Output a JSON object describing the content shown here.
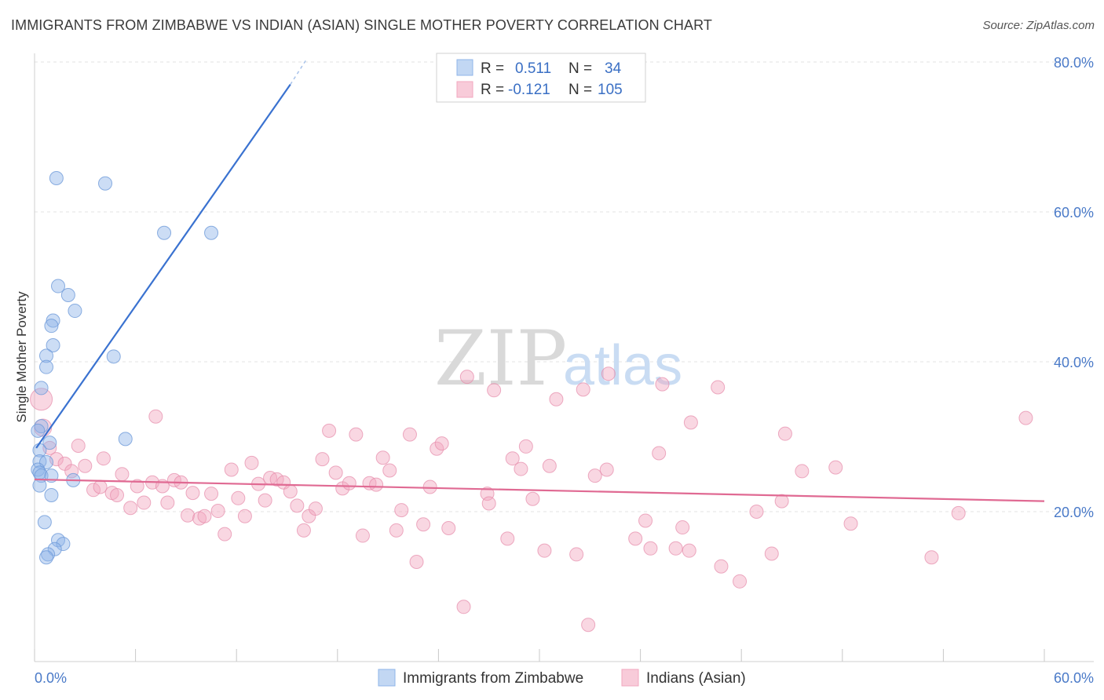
{
  "title": "IMMIGRANTS FROM ZIMBABWE VS INDIAN (ASIAN) SINGLE MOTHER POVERTY CORRELATION CHART",
  "source": "Source: ZipAtlas.com",
  "watermark": {
    "part1": "ZIP",
    "part2": "atlas"
  },
  "colors": {
    "blue": "#8fb4e8",
    "blue_line": "#3a72d0",
    "pink": "#f2a7bf",
    "pink_line": "#e06a93",
    "grid": "#e3e3e3"
  },
  "legend": {
    "row1": {
      "r_label": "R =",
      "r_value": "0.511",
      "n_label": "N =",
      "n_value": "34"
    },
    "row2": {
      "r_label": "R =",
      "r_value": "-0.121",
      "n_label": "N =",
      "n_value": "105"
    }
  },
  "chart_data": {
    "type": "scatter",
    "title": "IMMIGRANTS FROM ZIMBABWE VS INDIAN (ASIAN) SINGLE MOTHER POVERTY CORRELATION CHART",
    "xlabel": "",
    "ylabel": "Single Mother Poverty",
    "xlim": [
      0,
      60
    ],
    "ylim": [
      0,
      83
    ],
    "x_tick_labels": [
      "0.0%",
      "60.0%"
    ],
    "y_tick_labels": [
      {
        "value": 20,
        "label": "20.0%"
      },
      {
        "value": 40,
        "label": "40.0%"
      },
      {
        "value": 60,
        "label": "60.0%"
      },
      {
        "value": 80,
        "label": "80.0%"
      }
    ],
    "series": [
      {
        "name": "Immigrants from Zimbabwe",
        "color": "#8fb4e8",
        "r": 0.511,
        "n": 34,
        "trend": {
          "x0": 0.1,
          "y0": 28.5,
          "x1": 15.2,
          "y1": 77.0,
          "dash_x1": 16.2,
          "dash_y1": 80.5
        },
        "points": [
          [
            1.3,
            64.5
          ],
          [
            4.2,
            63.8
          ],
          [
            7.7,
            57.2
          ],
          [
            10.5,
            57.2
          ],
          [
            1.4,
            50.1
          ],
          [
            2.0,
            48.9
          ],
          [
            2.4,
            46.8
          ],
          [
            1.1,
            45.5
          ],
          [
            1.0,
            44.8
          ],
          [
            1.1,
            42.2
          ],
          [
            0.7,
            40.8
          ],
          [
            4.7,
            40.7
          ],
          [
            0.7,
            39.3
          ],
          [
            0.4,
            36.5
          ],
          [
            0.4,
            31.4
          ],
          [
            0.2,
            30.8
          ],
          [
            5.4,
            29.7
          ],
          [
            0.9,
            29.2
          ],
          [
            0.3,
            28.2
          ],
          [
            0.3,
            26.7
          ],
          [
            0.7,
            26.6
          ],
          [
            0.2,
            25.6
          ],
          [
            0.3,
            25.2
          ],
          [
            0.4,
            24.8
          ],
          [
            1.0,
            24.8
          ],
          [
            2.3,
            24.2
          ],
          [
            0.3,
            23.5
          ],
          [
            1.0,
            22.2
          ],
          [
            0.6,
            18.6
          ],
          [
            1.4,
            16.2
          ],
          [
            1.7,
            15.7
          ],
          [
            1.2,
            15.0
          ],
          [
            0.8,
            14.3
          ],
          [
            0.7,
            13.9
          ]
        ]
      },
      {
        "name": "Indians (Asian)",
        "color": "#f2a7bf",
        "r": -0.121,
        "n": 105,
        "trend": {
          "x0": 0,
          "y0": 24.3,
          "x1": 60,
          "y1": 21.4
        },
        "points": [
          [
            0.4,
            35.0
          ],
          [
            0.5,
            31.2
          ],
          [
            0.9,
            28.5
          ],
          [
            1.3,
            27.0
          ],
          [
            1.8,
            26.4
          ],
          [
            2.2,
            25.4
          ],
          [
            2.6,
            28.8
          ],
          [
            3.0,
            26.1
          ],
          [
            3.5,
            22.9
          ],
          [
            3.9,
            23.3
          ],
          [
            4.1,
            27.1
          ],
          [
            4.6,
            22.5
          ],
          [
            4.9,
            22.2
          ],
          [
            5.2,
            25.0
          ],
          [
            5.7,
            20.5
          ],
          [
            6.1,
            23.4
          ],
          [
            6.5,
            21.2
          ],
          [
            7.0,
            23.9
          ],
          [
            7.2,
            32.7
          ],
          [
            7.6,
            23.4
          ],
          [
            7.9,
            21.2
          ],
          [
            8.3,
            24.2
          ],
          [
            8.7,
            23.9
          ],
          [
            9.1,
            19.5
          ],
          [
            9.4,
            22.5
          ],
          [
            9.8,
            19.1
          ],
          [
            10.1,
            19.4
          ],
          [
            10.5,
            22.4
          ],
          [
            10.9,
            20.1
          ],
          [
            11.3,
            17.0
          ],
          [
            11.7,
            25.6
          ],
          [
            12.1,
            21.8
          ],
          [
            12.5,
            19.4
          ],
          [
            12.9,
            26.5
          ],
          [
            13.3,
            23.7
          ],
          [
            13.7,
            21.5
          ],
          [
            14.0,
            24.5
          ],
          [
            14.4,
            24.3
          ],
          [
            14.8,
            23.9
          ],
          [
            15.2,
            22.7
          ],
          [
            15.6,
            20.8
          ],
          [
            16.0,
            17.5
          ],
          [
            16.3,
            19.4
          ],
          [
            16.7,
            20.4
          ],
          [
            17.1,
            27.0
          ],
          [
            17.5,
            30.8
          ],
          [
            17.9,
            25.2
          ],
          [
            18.3,
            23.1
          ],
          [
            18.7,
            23.8
          ],
          [
            19.1,
            30.3
          ],
          [
            19.5,
            16.8
          ],
          [
            19.9,
            23.8
          ],
          [
            20.3,
            23.6
          ],
          [
            20.7,
            27.2
          ],
          [
            21.1,
            25.5
          ],
          [
            21.5,
            17.5
          ],
          [
            21.8,
            20.2
          ],
          [
            22.3,
            30.3
          ],
          [
            22.7,
            13.3
          ],
          [
            23.1,
            18.3
          ],
          [
            23.5,
            23.3
          ],
          [
            23.9,
            28.4
          ],
          [
            24.2,
            29.1
          ],
          [
            24.6,
            17.8
          ],
          [
            25.5,
            7.3
          ],
          [
            25.7,
            38.0
          ],
          [
            26.9,
            22.4
          ],
          [
            27.0,
            21.1
          ],
          [
            27.3,
            36.2
          ],
          [
            28.1,
            16.4
          ],
          [
            28.4,
            27.1
          ],
          [
            28.9,
            25.7
          ],
          [
            29.2,
            28.7
          ],
          [
            29.6,
            21.7
          ],
          [
            30.3,
            14.8
          ],
          [
            30.6,
            26.1
          ],
          [
            31.0,
            35.0
          ],
          [
            32.2,
            14.3
          ],
          [
            32.6,
            36.3
          ],
          [
            32.9,
            4.9
          ],
          [
            33.3,
            24.8
          ],
          [
            34.0,
            25.6
          ],
          [
            34.1,
            38.4
          ],
          [
            35.7,
            16.4
          ],
          [
            36.3,
            18.8
          ],
          [
            36.6,
            15.1
          ],
          [
            37.1,
            27.8
          ],
          [
            37.3,
            37.0
          ],
          [
            38.1,
            15.1
          ],
          [
            38.5,
            17.9
          ],
          [
            38.9,
            14.8
          ],
          [
            39.0,
            31.9
          ],
          [
            40.6,
            36.6
          ],
          [
            40.8,
            12.7
          ],
          [
            41.9,
            10.7
          ],
          [
            42.9,
            20.0
          ],
          [
            43.8,
            14.4
          ],
          [
            44.4,
            21.4
          ],
          [
            44.6,
            30.4
          ],
          [
            45.6,
            25.4
          ],
          [
            47.6,
            25.9
          ],
          [
            48.5,
            18.4
          ],
          [
            53.3,
            13.9
          ],
          [
            54.9,
            19.8
          ],
          [
            58.9,
            32.5
          ]
        ]
      }
    ]
  },
  "bottom_legend": [
    {
      "label": "Immigrants from Zimbabwe"
    },
    {
      "label": "Indians (Asian)"
    }
  ]
}
